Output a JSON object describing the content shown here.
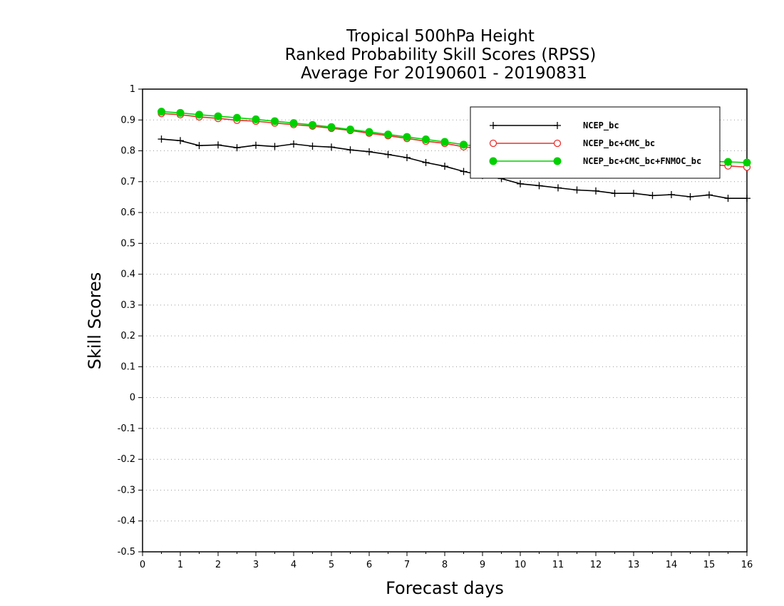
{
  "chart_data": {
    "type": "line",
    "title_lines": [
      "Tropical 500hPa Height",
      "Ranked Probability Skill Scores (RPSS)",
      "Average For 20190601 - 20190831"
    ],
    "xlabel": "Forecast days",
    "ylabel": "Skill Scores",
    "xlim": [
      0,
      16
    ],
    "ylim": [
      -0.5,
      1
    ],
    "x_ticks": [
      "0",
      "1",
      "2",
      "3",
      "4",
      "5",
      "6",
      "7",
      "8",
      "9",
      "10",
      "11",
      "12",
      "13",
      "14",
      "15",
      "16"
    ],
    "y_ticks": [
      "-0.5",
      "-0.4",
      "-0.3",
      "-0.2",
      "-0.1",
      "0",
      "0.1",
      "0.2",
      "0.3",
      "0.4",
      "0.5",
      "0.6",
      "0.7",
      "0.8",
      "0.9",
      "1"
    ],
    "grid": "horizontal-dotted",
    "legend_position": "top-right",
    "x": [
      0.5,
      1,
      1.5,
      2,
      2.5,
      3,
      3.5,
      4,
      4.5,
      5,
      5.5,
      6,
      6.5,
      7,
      7.5,
      8,
      8.5,
      9,
      9.5,
      10,
      10.5,
      11,
      11.5,
      12,
      12.5,
      13,
      13.5,
      14,
      14.5,
      15,
      15.5,
      16
    ],
    "series": [
      {
        "name": "NCEP_bc",
        "color": "#000000",
        "marker": "plus",
        "values": [
          0.838,
          0.833,
          0.817,
          0.819,
          0.81,
          0.818,
          0.814,
          0.822,
          0.815,
          0.812,
          0.803,
          0.797,
          0.788,
          0.778,
          0.762,
          0.75,
          0.733,
          0.72,
          0.71,
          0.693,
          0.687,
          0.68,
          0.673,
          0.67,
          0.662,
          0.662,
          0.655,
          0.658,
          0.651,
          0.657,
          0.646,
          0.646
        ]
      },
      {
        "name": "NCEP_bc+CMC_bc",
        "color": "#e8302c",
        "marker": "open-circle",
        "values": [
          0.921,
          0.917,
          0.91,
          0.905,
          0.899,
          0.896,
          0.89,
          0.885,
          0.88,
          0.873,
          0.866,
          0.857,
          0.849,
          0.84,
          0.831,
          0.824,
          0.813,
          0.807,
          0.8,
          0.795,
          0.79,
          0.786,
          0.783,
          0.78,
          0.775,
          0.771,
          0.767,
          0.763,
          0.759,
          0.756,
          0.751,
          0.747
        ]
      },
      {
        "name": "NCEP_bc+CMC_bc+FNMOC_bc",
        "color": "#00d000",
        "marker": "filled-circle",
        "values": [
          0.927,
          0.923,
          0.917,
          0.912,
          0.907,
          0.902,
          0.896,
          0.89,
          0.884,
          0.877,
          0.869,
          0.861,
          0.853,
          0.845,
          0.837,
          0.829,
          0.82,
          0.813,
          0.806,
          0.801,
          0.796,
          0.792,
          0.789,
          0.786,
          0.782,
          0.778,
          0.775,
          0.772,
          0.769,
          0.766,
          0.764,
          0.762
        ]
      }
    ]
  }
}
